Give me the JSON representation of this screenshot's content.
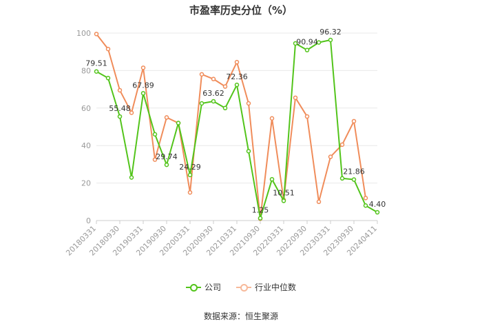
{
  "chart_data": {
    "type": "line",
    "title": "市盈率历史分位（%）",
    "ylim": [
      0,
      100
    ],
    "yticks": [
      0,
      20,
      40,
      60,
      80,
      100
    ],
    "x_tick_labels": [
      "20180331",
      "20180930",
      "20190331",
      "20190930",
      "20200331",
      "20200930",
      "20210331",
      "20210930",
      "20220331",
      "20220930",
      "20230331",
      "20230930",
      "20240411"
    ],
    "grid": true,
    "legend_position": "bottom",
    "series": [
      {
        "name": "公司",
        "color": "#52c41a",
        "values": [
          79.51,
          76,
          55.48,
          23,
          67.89,
          46,
          29.74,
          52,
          24.29,
          62.5,
          63.62,
          60,
          72.36,
          37,
          1.25,
          22,
          10.51,
          94.5,
          90.94,
          95,
          96.32,
          22.5,
          21.86,
          8,
          4.4
        ],
        "labeled": {
          "0": "79.51",
          "2": "55.48",
          "4": "67.89",
          "6": "29.74",
          "8": "24.29",
          "10": "63.62",
          "12": "72.36",
          "14": "1.25",
          "16": "10.51",
          "18": "90.94",
          "20": "96.32",
          "22": "21.86",
          "24": "4.40"
        }
      },
      {
        "name": "行业中位数",
        "color": "#f08c5a",
        "values": [
          99.5,
          91.5,
          69.5,
          57.5,
          81.5,
          32.5,
          55,
          52,
          15,
          78,
          75.5,
          71.5,
          84.5,
          62.5,
          1,
          54.5,
          11,
          65.5,
          55.5,
          10,
          34,
          40.5,
          53,
          12,
          null
        ]
      }
    ]
  },
  "source_text": "数据来源：恒生聚源"
}
